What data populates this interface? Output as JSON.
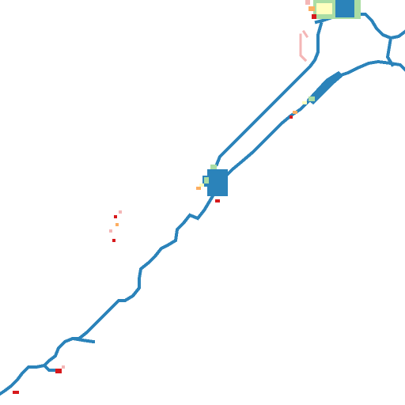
{
  "map": {
    "kind": "raster-density-trace",
    "background_color": "#ffffff",
    "palette": {
      "track": "#2b83ba",
      "low": "#abdda4",
      "mid": "#ffffbf",
      "high": "#fdae61",
      "peak": "#d7191c",
      "faint": "#f4b6b6"
    }
  }
}
